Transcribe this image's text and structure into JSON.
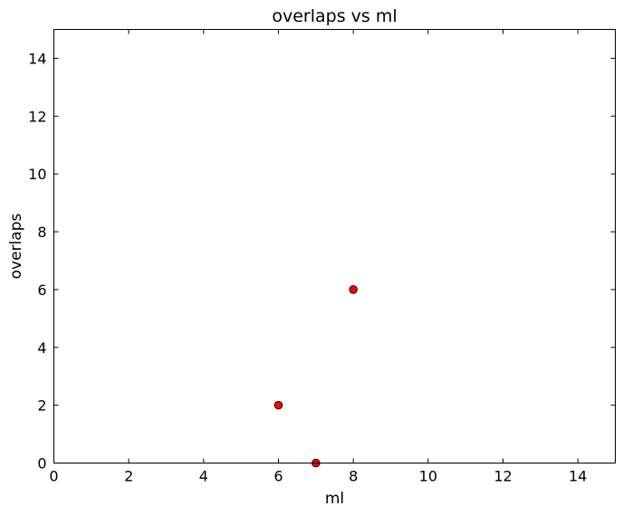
{
  "chart_data": {
    "type": "scatter",
    "title": "overlaps vs ml",
    "xlabel": "ml",
    "ylabel": "overlaps",
    "xlim": [
      0,
      15
    ],
    "ylim": [
      0,
      15
    ],
    "xticks": [
      0,
      2,
      4,
      6,
      8,
      10,
      12,
      14
    ],
    "yticks": [
      0,
      2,
      4,
      6,
      8,
      10,
      12,
      14
    ],
    "grid": false,
    "marker_color": "#ff0000",
    "marker_edge_color": "#000000",
    "points": [
      {
        "x": 6,
        "y": 2
      },
      {
        "x": 7,
        "y": 0
      },
      {
        "x": 8,
        "y": 6
      }
    ]
  }
}
